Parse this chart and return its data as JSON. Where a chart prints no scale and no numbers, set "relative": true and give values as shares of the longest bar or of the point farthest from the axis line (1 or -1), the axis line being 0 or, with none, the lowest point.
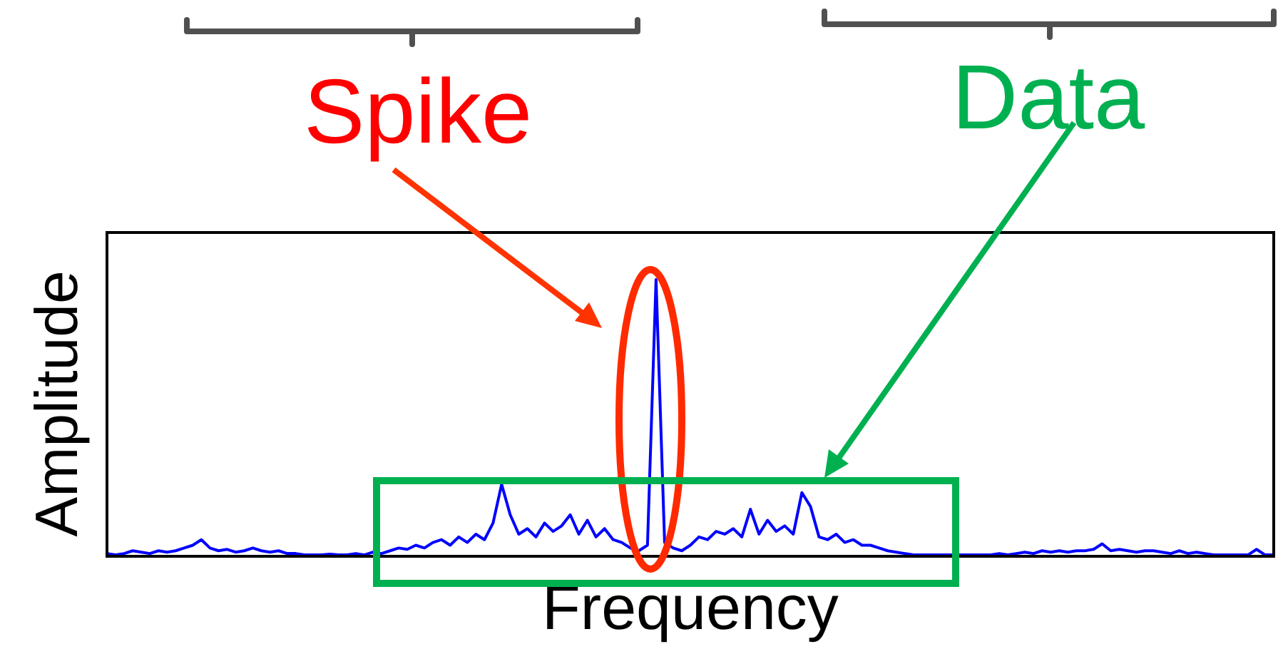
{
  "chart_data": {
    "type": "line",
    "xlabel": "Frequency",
    "ylabel": "Amplitude",
    "annotations": [
      "Spike",
      "Data"
    ],
    "relative": true,
    "tick_labels": false,
    "marker": "none",
    "color": "#0000ff",
    "categories": [
      null,
      null,
      null,
      null,
      null,
      null,
      null,
      null,
      null,
      null,
      null,
      null,
      null,
      null,
      null,
      null,
      null,
      null,
      null,
      null,
      null,
      null,
      null,
      null,
      null,
      null,
      null,
      null,
      null,
      null,
      null,
      null,
      null,
      null,
      null,
      null,
      null,
      null,
      null,
      null,
      null,
      null,
      null,
      null,
      null,
      null,
      null,
      null,
      null,
      null,
      null,
      null,
      null,
      null,
      null,
      null,
      null,
      null,
      null,
      null,
      null,
      null,
      null,
      null,
      null,
      null,
      null,
      null,
      null,
      null,
      null,
      null,
      null,
      null,
      null,
      null,
      null,
      null,
      null,
      null,
      null,
      null,
      null,
      null,
      null,
      null,
      null,
      null,
      null,
      null,
      null,
      null,
      null,
      null,
      null,
      null,
      null,
      null,
      null,
      null,
      null,
      null,
      null,
      null,
      null,
      null,
      null,
      null,
      null,
      null,
      null,
      null,
      null,
      null,
      null,
      null,
      null,
      null,
      null,
      null,
      null,
      null,
      null,
      null,
      null,
      null,
      null,
      null,
      null,
      null,
      null,
      null,
      null,
      null,
      null,
      null,
      null
    ],
    "values": [
      0.01,
      0.005,
      0.01,
      0.02,
      0.015,
      0.01,
      0.02,
      0.015,
      0.02,
      0.03,
      0.04,
      0.06,
      0.03,
      0.02,
      0.025,
      0.015,
      0.02,
      0.03,
      0.02,
      0.015,
      0.02,
      0.01,
      0.01,
      0.005,
      0.005,
      0.005,
      0.008,
      0.005,
      0.005,
      0.01,
      0.005,
      0.015,
      0.01,
      0.02,
      0.03,
      0.025,
      0.04,
      0.03,
      0.05,
      0.06,
      0.04,
      0.07,
      0.05,
      0.08,
      0.06,
      0.12,
      0.26,
      0.15,
      0.08,
      0.1,
      0.07,
      0.12,
      0.09,
      0.11,
      0.15,
      0.08,
      0.13,
      0.07,
      0.1,
      0.06,
      0.05,
      0.03,
      0.02,
      0.04,
      1.0,
      0.05,
      0.03,
      0.02,
      0.04,
      0.07,
      0.06,
      0.09,
      0.08,
      0.1,
      0.07,
      0.17,
      0.08,
      0.13,
      0.09,
      0.11,
      0.08,
      0.23,
      0.18,
      0.07,
      0.06,
      0.08,
      0.05,
      0.06,
      0.04,
      0.04,
      0.03,
      0.02,
      0.015,
      0.01,
      0.005,
      0.005,
      0.005,
      0.005,
      0.005,
      0.005,
      0.005,
      0.005,
      0.005,
      0.005,
      0.01,
      0.005,
      0.01,
      0.015,
      0.01,
      0.02,
      0.015,
      0.02,
      0.015,
      0.02,
      0.02,
      0.025,
      0.045,
      0.02,
      0.025,
      0.02,
      0.015,
      0.02,
      0.02,
      0.015,
      0.01,
      0.02,
      0.01,
      0.015,
      0.01,
      0.005,
      0.005,
      0.005,
      0.005,
      0.005,
      0.025,
      0.005,
      0.005
    ]
  }
}
